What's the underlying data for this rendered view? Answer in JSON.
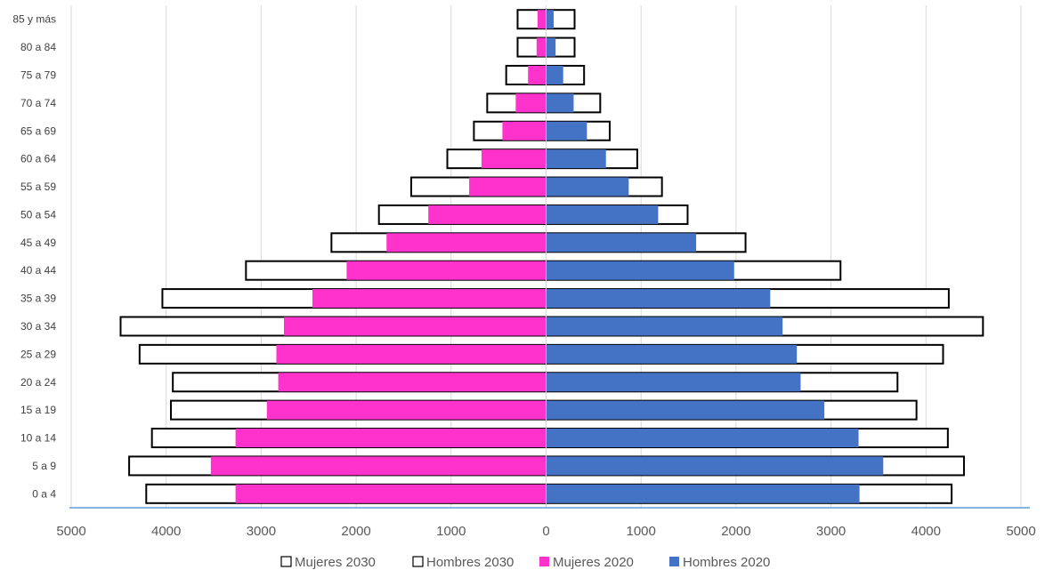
{
  "chart_data": {
    "type": "bar",
    "orientation": "horizontal",
    "subtype": "population-pyramid",
    "categories": [
      "0 a 4",
      "5 a 9",
      "10 a 14",
      "15 a 19",
      "20 a 24",
      "25 a 29",
      "30 a 34",
      "35 a 39",
      "40 a 44",
      "45 a 49",
      "50 a 54",
      "55 a 59",
      "60 a 64",
      "65 a 69",
      "70 a 74",
      "75 a 79",
      "80 a 84",
      "85 y más"
    ],
    "series": [
      {
        "name": "Mujeres 2030",
        "color": "#ffffff",
        "stroke": "#000000",
        "side": "left",
        "values": [
          4210,
          4390,
          4150,
          3950,
          3930,
          4280,
          4480,
          4040,
          3160,
          2260,
          1760,
          1420,
          1040,
          760,
          620,
          420,
          300,
          300
        ]
      },
      {
        "name": "Hombres 2030",
        "color": "#ffffff",
        "stroke": "#000000",
        "side": "right",
        "values": [
          4270,
          4400,
          4230,
          3900,
          3700,
          4180,
          4600,
          4240,
          3100,
          2100,
          1490,
          1220,
          960,
          670,
          570,
          400,
          300,
          300
        ]
      },
      {
        "name": "Mujeres 2020",
        "color": "#ff33cc",
        "side": "left",
        "values": [
          3270,
          3530,
          3270,
          2940,
          2820,
          2840,
          2760,
          2460,
          2100,
          1680,
          1240,
          810,
          680,
          460,
          320,
          190,
          100,
          90
        ]
      },
      {
        "name": "Hombres 2020",
        "color": "#4472c4",
        "side": "right",
        "values": [
          3300,
          3550,
          3290,
          2930,
          2680,
          2640,
          2490,
          2360,
          1980,
          1580,
          1180,
          870,
          630,
          430,
          290,
          180,
          100,
          80
        ]
      }
    ],
    "x_ticks": [
      "5000",
      "4000",
      "3000",
      "2000",
      "1000",
      "0",
      "1000",
      "2000",
      "3000",
      "4000",
      "5000"
    ],
    "xlim": [
      -5000,
      5000
    ],
    "grid": true,
    "legend_position": "bottom"
  }
}
